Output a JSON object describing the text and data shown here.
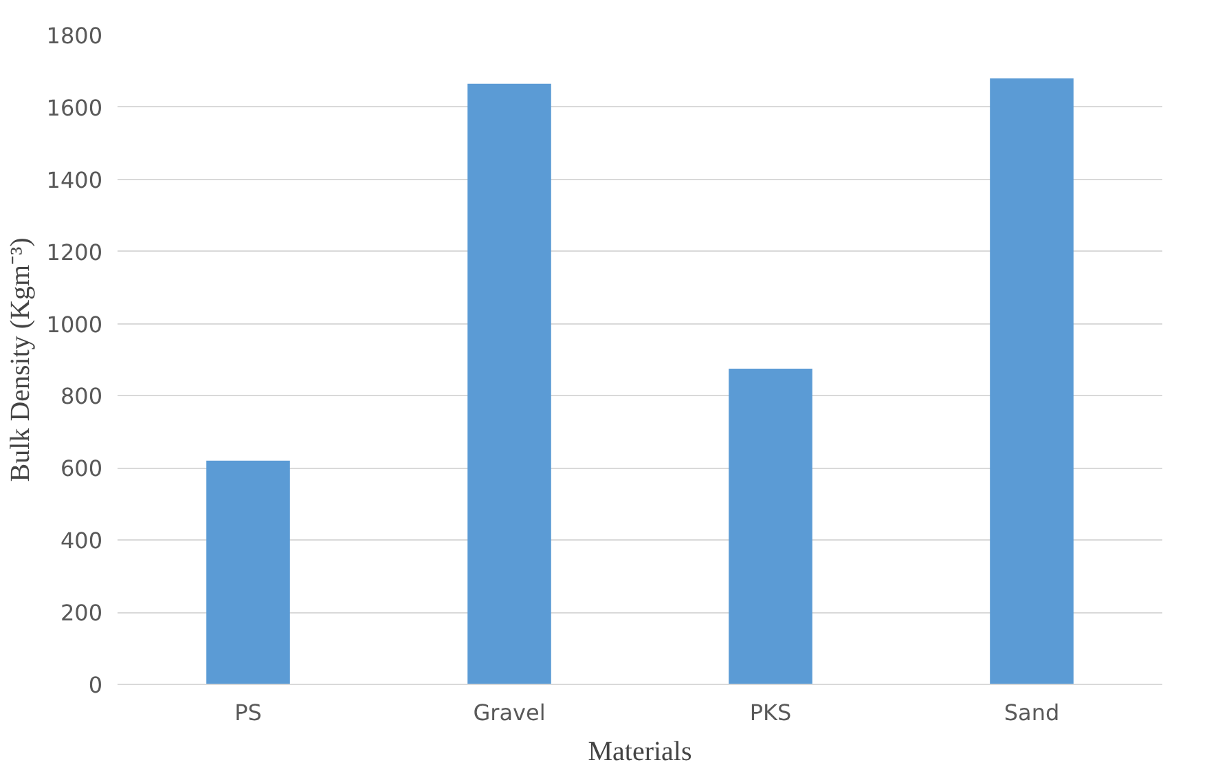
{
  "chart_data": {
    "type": "bar",
    "xlabel": "Materials",
    "ylabel": "Bulk Density (Kgm⁻³)",
    "categories": [
      "PS",
      "Gravel",
      "PKS",
      "Sand"
    ],
    "values": [
      620,
      1665,
      875,
      1680
    ],
    "color": "#5b9bd5",
    "ylim": [
      0,
      1800
    ],
    "yticks": [
      0,
      200,
      400,
      600,
      800,
      1000,
      1200,
      1400,
      1600,
      1800
    ],
    "grid": "y"
  }
}
